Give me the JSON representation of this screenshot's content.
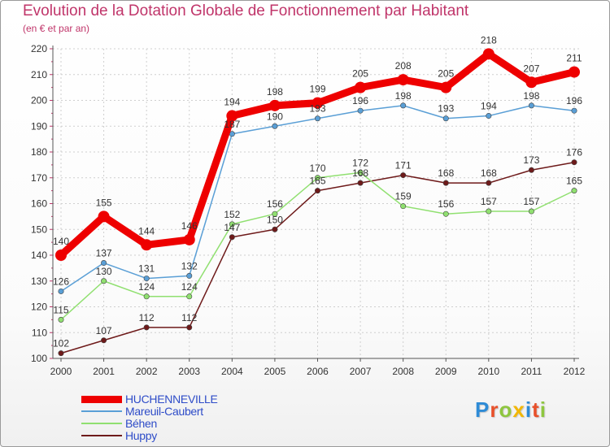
{
  "header": {
    "title": "Evolution de la Dotation Globale de Fonctionnement par Habitant",
    "subtitle": "(en € et par an)"
  },
  "logo": {
    "text": "Proxiti",
    "colors": [
      "#2e8bd6",
      "#e8502a",
      "#8ec63f",
      "#f2b705",
      "#2e8bd6",
      "#e8502a",
      "#8ec63f"
    ]
  },
  "chart_data": {
    "type": "line",
    "title": "Evolution de la Dotation Globale de Fonctionnement par Habitant",
    "subtitle": "(en € et par an)",
    "xlabel": "",
    "ylabel": "",
    "categories": [
      "2000",
      "2001",
      "2002",
      "2003",
      "2004",
      "2005",
      "2006",
      "2007",
      "2008",
      "2009",
      "2010",
      "2011",
      "2012"
    ],
    "ylim": [
      100,
      220
    ],
    "yticks": [
      100,
      110,
      120,
      130,
      140,
      150,
      160,
      170,
      180,
      190,
      200,
      210,
      220
    ],
    "grid": true,
    "legend_position": "bottom-left",
    "series": [
      {
        "name": "HUCHENNEVILLE",
        "color": "#ee0000",
        "values": [
          140,
          155,
          144,
          146,
          194,
          198,
          199,
          205,
          208,
          205,
          218,
          207,
          211
        ]
      },
      {
        "name": "Mareuil-Caubert",
        "color": "#5a9fd6",
        "values": [
          126,
          137,
          131,
          132,
          187,
          190,
          193,
          196,
          198,
          193,
          194,
          198,
          196
        ]
      },
      {
        "name": "Béhen",
        "color": "#90e070",
        "values": [
          115,
          130,
          124,
          124,
          152,
          156,
          170,
          172,
          159,
          156,
          157,
          157,
          165
        ]
      },
      {
        "name": "Huppy",
        "color": "#6e1a1a",
        "values": [
          102,
          107,
          112,
          112,
          147,
          150,
          165,
          168,
          171,
          168,
          168,
          173,
          176
        ]
      }
    ]
  }
}
